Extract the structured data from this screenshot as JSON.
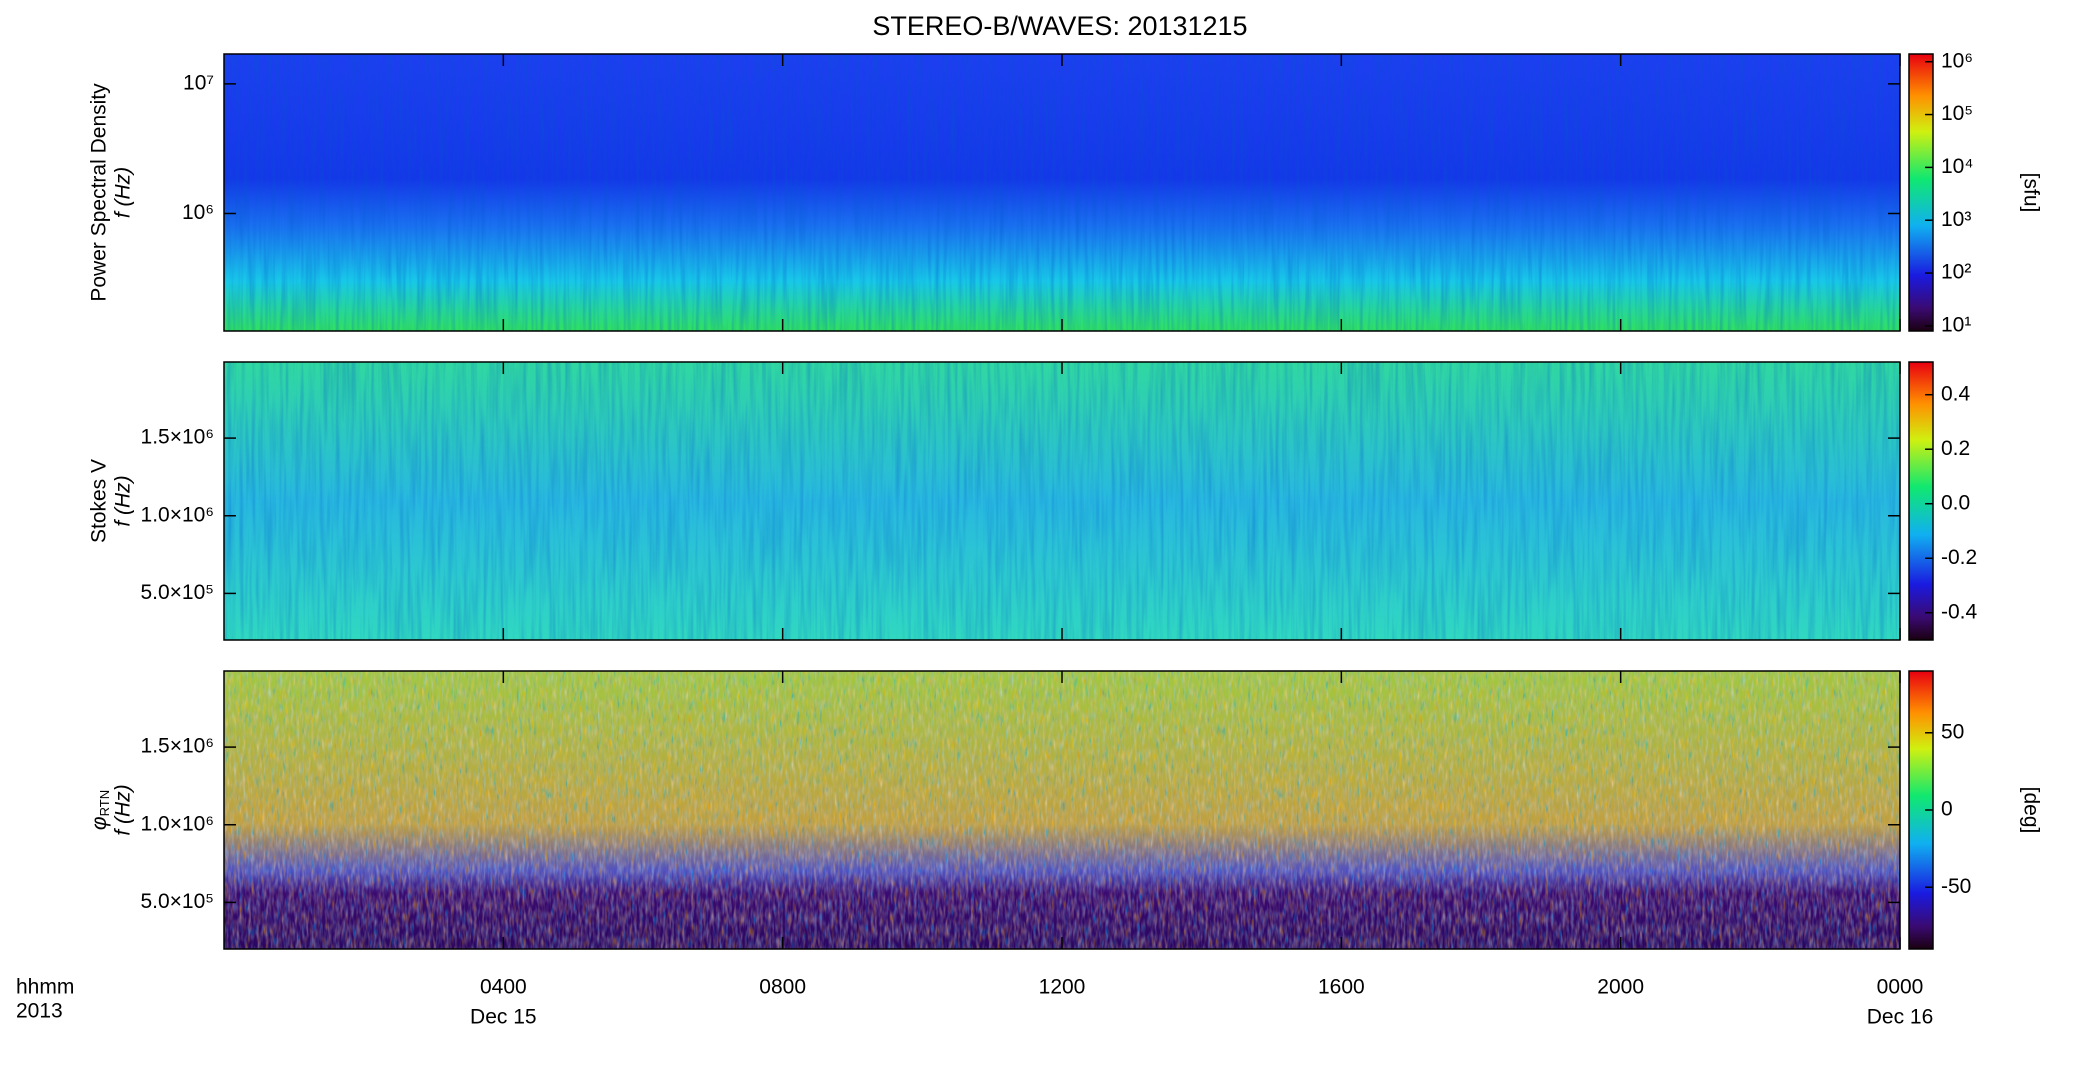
{
  "chart_data": [
    {
      "type": "heatmap",
      "title": "STEREO-B/WAVES: 20131215",
      "ylabel": [
        "Power Spectral Density",
        "f (Hz)"
      ],
      "yscale": "log",
      "ylim": [
        124000,
        17000000
      ],
      "yticks": [
        {
          "value": 1000000,
          "label": "10⁶"
        },
        {
          "value": 10000000,
          "label": "10⁷"
        }
      ],
      "colorbar_label": "[sfu]",
      "colorbar_scale": "log",
      "clim": [
        8,
        1400000
      ],
      "cticks": [
        {
          "value": 10,
          "label": "10¹"
        },
        {
          "value": 100,
          "label": "10²"
        },
        {
          "value": 1000,
          "label": "10³"
        },
        {
          "value": 10000,
          "label": "10⁴"
        },
        {
          "value": 100000,
          "label": "10⁵"
        },
        {
          "value": 1000000,
          "label": "10⁶"
        }
      ]
    },
    {
      "type": "heatmap",
      "ylabel": [
        "Stokes V",
        "f (Hz)"
      ],
      "yscale": "linear",
      "ylim": [
        200000,
        1990000
      ],
      "yticks": [
        {
          "value": 500000,
          "label": "5.0×10⁵"
        },
        {
          "value": 1000000,
          "label": "1.0×10⁶"
        },
        {
          "value": 1500000,
          "label": "1.5×10⁶"
        }
      ],
      "colorbar_scale": "linear",
      "clim": [
        -0.5,
        0.52
      ],
      "cticks": [
        {
          "value": 0.4,
          "label": "0.4"
        },
        {
          "value": 0.2,
          "label": "0.2"
        },
        {
          "value": 0,
          "label": "0.0"
        },
        {
          "value": -0.2,
          "label": "-0.2"
        },
        {
          "value": -0.4,
          "label": "-0.4"
        }
      ]
    },
    {
      "type": "heatmap",
      "ylabel": [
        "φ",
        "RTN",
        "f (Hz)"
      ],
      "yscale": "linear",
      "ylim": [
        200000,
        1990000
      ],
      "yticks": [
        {
          "value": 500000,
          "label": "5.0×10⁵"
        },
        {
          "value": 1000000,
          "label": "1.0×10⁶"
        },
        {
          "value": 1500000,
          "label": "1.5×10⁶"
        }
      ],
      "colorbar_label": "[deg]",
      "colorbar_scale": "linear",
      "clim": [
        -90,
        90
      ],
      "cticks": [
        50,
        0,
        -50
      ],
      "xlabel": "hhmm",
      "year": "2013",
      "xlim": [
        0,
        24
      ],
      "xticks": [
        {
          "value": 4,
          "label": "0400"
        },
        {
          "value": 8,
          "label": "0800"
        },
        {
          "value": 12,
          "label": "1200"
        },
        {
          "value": 16,
          "label": "1600"
        },
        {
          "value": 20,
          "label": "2000"
        },
        {
          "value": 24,
          "label": "0000"
        }
      ],
      "x_date_labels": [
        {
          "value": 4,
          "label": "Dec 15"
        },
        {
          "value": 24,
          "label": "Dec 16"
        }
      ]
    }
  ]
}
